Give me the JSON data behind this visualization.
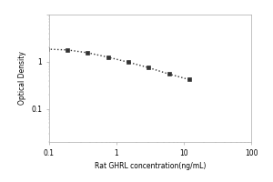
{
  "x": [
    0.094,
    0.188,
    0.375,
    0.75,
    1.5,
    3.0,
    6.0,
    12.0
  ],
  "y": [
    1.85,
    1.78,
    1.55,
    1.25,
    0.98,
    0.75,
    0.55,
    0.42
  ],
  "marker": "s",
  "marker_color": "#333333",
  "marker_size": 3,
  "line_style": "dotted",
  "line_color": "#333333",
  "line_width": 1.0,
  "xlabel": "Rat GHRL concentration(ng/mL)",
  "ylabel": "Optical Density",
  "xlim": [
    0.1,
    100
  ],
  "ylim": [
    0.02,
    10
  ],
  "x_ticks": [
    0.1,
    1,
    10,
    100
  ],
  "y_ticks": [
    0.1,
    1,
    10
  ],
  "y_tick_labels": [
    "0.1",
    "1",
    ""
  ],
  "x_tick_labels": [
    "0.1",
    "1",
    "10",
    "100"
  ],
  "background_color": "#ffffff",
  "xlabel_fontsize": 5.5,
  "ylabel_fontsize": 5.5,
  "tick_fontsize": 5.5,
  "spine_color": "#aaaaaa",
  "spine_linewidth": 0.5
}
